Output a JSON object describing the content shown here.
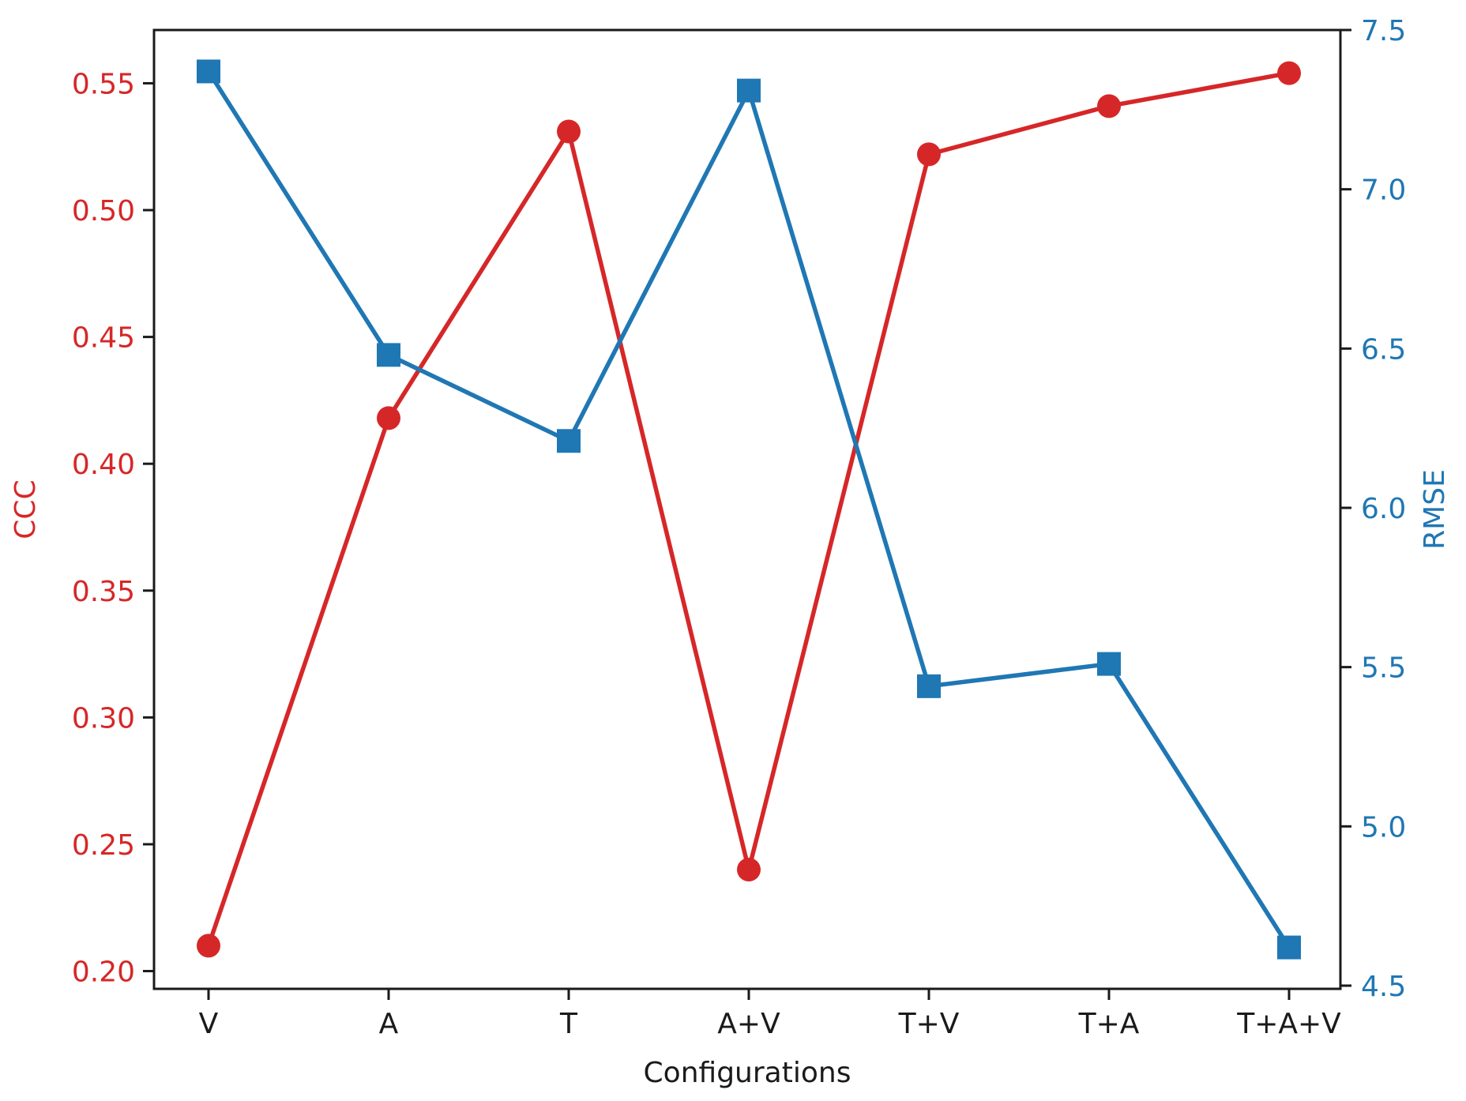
{
  "chart_data": {
    "type": "line",
    "title": "",
    "xlabel": "Configurations",
    "categories": [
      "V",
      "A",
      "T",
      "A+V",
      "T+V",
      "T+A",
      "T+A+V"
    ],
    "series": [
      {
        "name": "CCC",
        "axis": "left",
        "color": "#d62728",
        "marker": "circle",
        "values": [
          0.21,
          0.418,
          0.531,
          0.24,
          0.522,
          0.541,
          0.554
        ]
      },
      {
        "name": "RMSE",
        "axis": "right",
        "color": "#1f77b4",
        "marker": "square",
        "values": [
          7.37,
          6.48,
          6.21,
          7.31,
          5.44,
          5.51,
          4.62
        ]
      }
    ],
    "y_left": {
      "label": "CCC",
      "color": "#d62728",
      "ylim": [
        0.193,
        0.571
      ],
      "ticks": [
        0.2,
        0.25,
        0.3,
        0.35,
        0.4,
        0.45,
        0.5,
        0.55
      ],
      "tick_labels": [
        "0.20",
        "0.25",
        "0.30",
        "0.35",
        "0.40",
        "0.45",
        "0.50",
        "0.55"
      ]
    },
    "y_right": {
      "label": "RMSE",
      "color": "#1f77b4",
      "ylim": [
        4.49,
        7.5
      ],
      "ticks": [
        4.5,
        5.0,
        5.5,
        6.0,
        6.5,
        7.0,
        7.5
      ],
      "tick_labels": [
        "4.5",
        "5.0",
        "5.5",
        "6.0",
        "6.5",
        "7.0",
        "7.5"
      ]
    },
    "grid": false,
    "legend": "none"
  }
}
